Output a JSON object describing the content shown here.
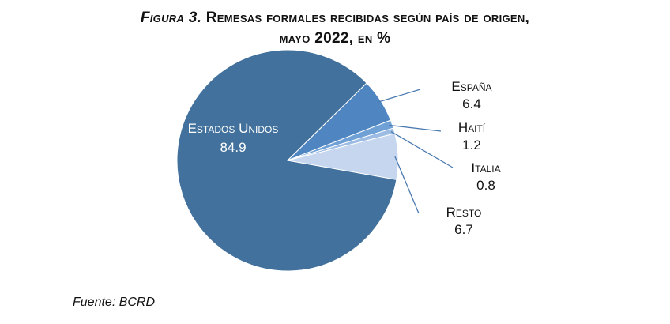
{
  "title": {
    "figure_prefix": "Figura 3.",
    "line1_rest": "Remesas formales recibidas según país de origen,",
    "line2": "mayo 2022, en %"
  },
  "source": "Fuente: BCRD",
  "chart_data": {
    "type": "pie",
    "title": "Figura 3. Remesas formales recibidas según país de origen, mayo 2022, en %",
    "slices": [
      {
        "label": "Estados Unidos",
        "value": 84.9,
        "value_text": "84.9",
        "color": "#41719c"
      },
      {
        "label": "España",
        "value": 6.4,
        "value_text": "6.4",
        "color": "#4f86c1"
      },
      {
        "label": "Haití",
        "value": 1.2,
        "value_text": "1.2",
        "color": "#6fa0d6"
      },
      {
        "label": "Italia",
        "value": 0.8,
        "value_text": "0.8",
        "color": "#9dbce3"
      },
      {
        "label": "Resto",
        "value": 6.7,
        "value_text": "6.7",
        "color": "#c5d6ee"
      }
    ],
    "label_placement": "inside for largest slice, outside with leader lines for others"
  }
}
